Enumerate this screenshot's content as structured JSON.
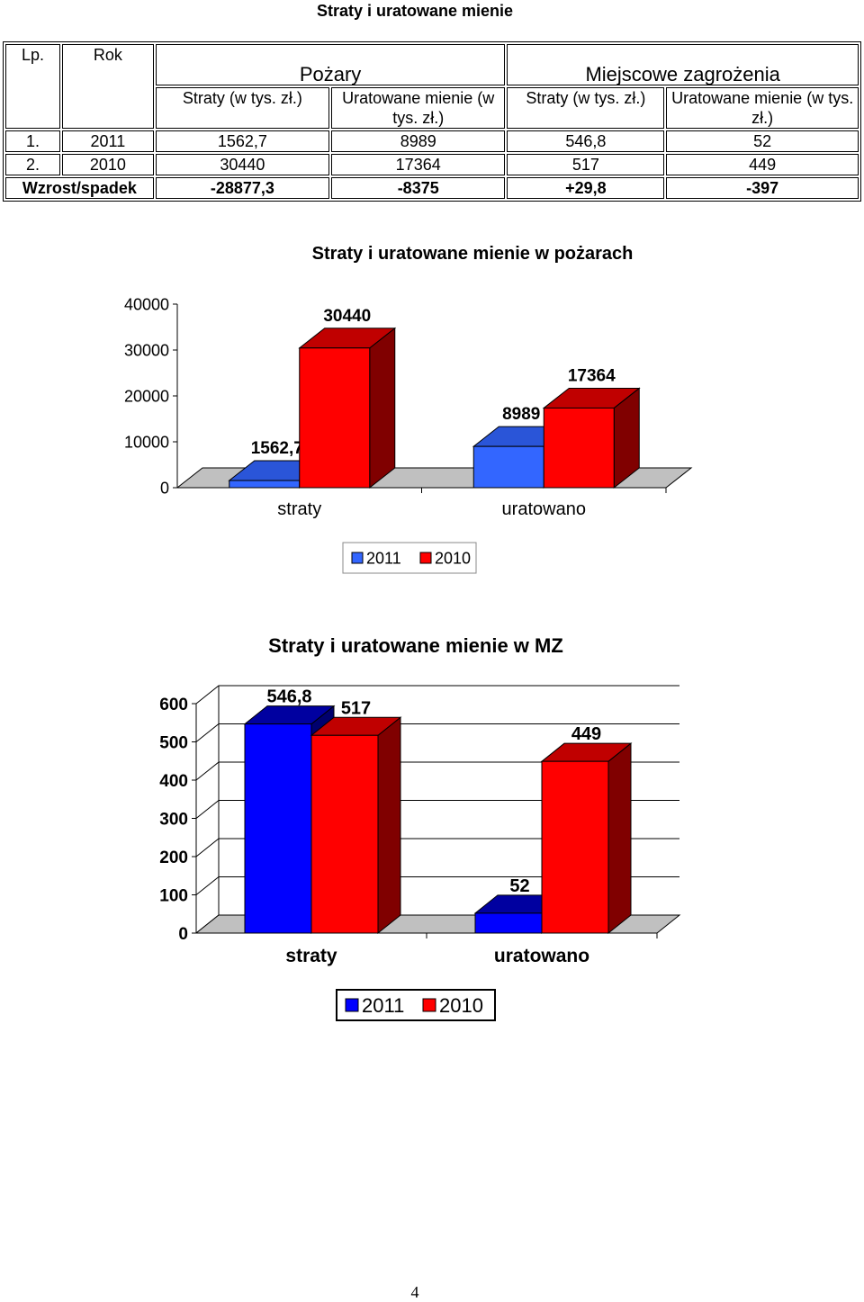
{
  "page_title": "Straty i uratowane mienie",
  "table": {
    "h_lp": "Lp.",
    "h_rok": "Rok",
    "h_pozary": "Pożary",
    "h_mz": "Miejscowe zagrożenia",
    "sub": [
      "Straty (w tys. zł.)",
      "Uratowane mienie (w tys. zł.)",
      "Straty (w tys. zł.)",
      "Uratowane mienie (w tys. zł.)"
    ],
    "rows": [
      {
        "lp": "1.",
        "rok": "2011",
        "c1": "1562,7",
        "c2": "8989",
        "c3": "546,8",
        "c4": "52"
      },
      {
        "lp": "2.",
        "rok": "2010",
        "c1": "30440",
        "c2": "17364",
        "c3": "517",
        "c4": "449"
      }
    ],
    "footer": {
      "label": "Wzrost/spadek",
      "c1": "-28877,3",
      "c2": "-8375",
      "c3": "+29,8",
      "c4": "-397"
    }
  },
  "chart_data": [
    {
      "type": "bar",
      "title": "Straty i uratowane mienie w pożarach",
      "categories": [
        "straty",
        "uratowano"
      ],
      "series": [
        {
          "name": "2011",
          "values": [
            1562.7,
            8989
          ],
          "labels": [
            "1562,7",
            "8989"
          ],
          "color": "#3366ff",
          "side": "#1a3fb3",
          "top": "#2a55d8"
        },
        {
          "name": "2010",
          "values": [
            30440,
            17364
          ],
          "labels": [
            "30440",
            "17364"
          ],
          "color": "#ff0000",
          "side": "#800000",
          "top": "#c00000"
        }
      ],
      "ylim": [
        0,
        40000
      ],
      "yticks": [
        "0",
        "10000",
        "20000",
        "30000",
        "40000"
      ],
      "grid": false,
      "legend": "bottom"
    },
    {
      "type": "bar",
      "title": "Straty i uratowane mienie w MZ",
      "categories": [
        "straty",
        "uratowano"
      ],
      "series": [
        {
          "name": "2011",
          "values": [
            546.8,
            52
          ],
          "labels": [
            "546,8",
            "52"
          ],
          "color": "#0000ff",
          "side": "#00006e",
          "top": "#0000a0"
        },
        {
          "name": "2010",
          "values": [
            517,
            449
          ],
          "labels": [
            "517",
            "449"
          ],
          "color": "#ff0000",
          "side": "#800000",
          "top": "#c00000"
        }
      ],
      "ylim": [
        0,
        600
      ],
      "yticks": [
        "0",
        "100",
        "200",
        "300",
        "400",
        "500",
        "600"
      ],
      "grid": true,
      "legend": "bottom"
    }
  ],
  "page_number": "4"
}
